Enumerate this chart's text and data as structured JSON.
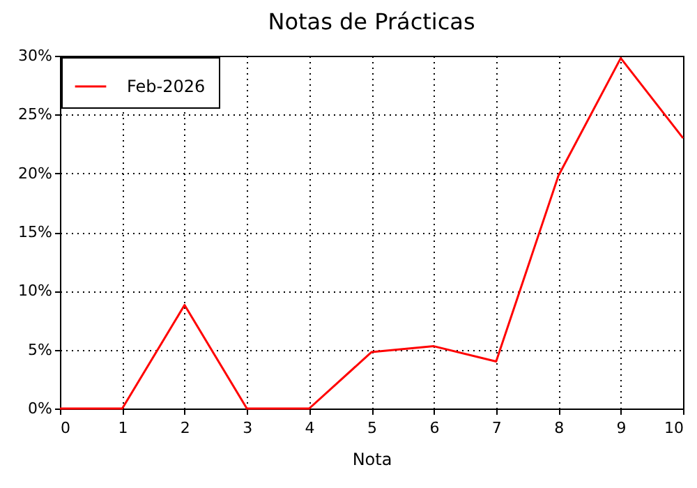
{
  "chart_data": {
    "type": "line",
    "title": "Notas de Prácticas",
    "xlabel": "Nota",
    "x": [
      0,
      1,
      2,
      3,
      4,
      5,
      6,
      7,
      8,
      9,
      10
    ],
    "series": [
      {
        "name": "Feb-2026",
        "color": "#ff0000",
        "values": [
          0,
          0,
          8.8,
          0,
          0,
          4.8,
          5.3,
          4.0,
          19.8,
          29.8,
          23.0
        ]
      }
    ],
    "xlim": [
      0,
      10
    ],
    "xticks": [
      0,
      1,
      2,
      3,
      4,
      5,
      6,
      7,
      8,
      9,
      10
    ],
    "ylim": [
      0,
      30
    ],
    "yticks": [
      {
        "value": 0,
        "label": "0%"
      },
      {
        "value": 5,
        "label": "5%"
      },
      {
        "value": 10,
        "label": "10%"
      },
      {
        "value": 15,
        "label": "15%"
      },
      {
        "value": 20,
        "label": "20%"
      },
      {
        "value": 25,
        "label": "25%"
      },
      {
        "value": 30,
        "label": "30%"
      }
    ],
    "grid": true,
    "legend": "top left",
    "marker": "none",
    "line_style": "solid"
  }
}
